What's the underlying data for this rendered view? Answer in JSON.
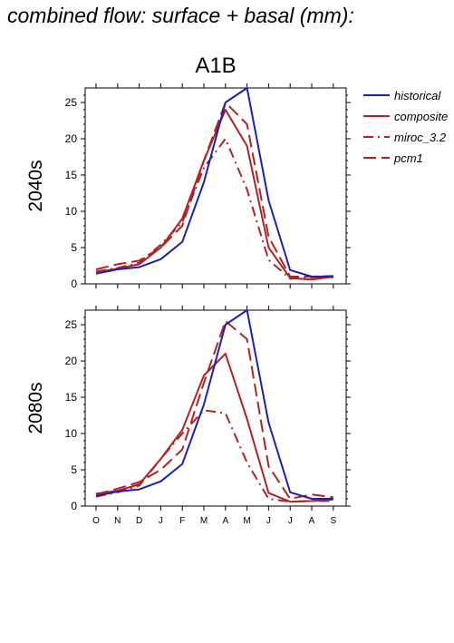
{
  "title": "combined flow: surface + basal (mm):",
  "colors": {
    "historical": "#1f1fb4",
    "composite": "#b22222",
    "miroc_3.2": "#b22222",
    "pcm1": "#b22222"
  },
  "chart_data": [
    {
      "type": "line",
      "scenario": "A1B",
      "ylabel": "2040s",
      "categories": [
        "O",
        "N",
        "D",
        "J",
        "F",
        "M",
        "A",
        "M",
        "J",
        "J",
        "A",
        "S"
      ],
      "ylim": [
        0,
        27
      ],
      "yticks": [
        0,
        5,
        10,
        15,
        20,
        25
      ],
      "legend": "top-right",
      "series": [
        {
          "name": "historical",
          "style": "solid",
          "values": [
            1.4,
            2.0,
            2.3,
            3.4,
            5.8,
            14.0,
            25.0,
            27.0,
            11.5,
            1.9,
            1.0,
            1.0
          ]
        },
        {
          "name": "composite",
          "style": "solid",
          "values": [
            1.6,
            2.1,
            2.7,
            5.0,
            9.0,
            17.0,
            24.0,
            19.0,
            5.0,
            0.8,
            0.6,
            1.0
          ]
        },
        {
          "name": "miroc_3.2",
          "style": "dashdot",
          "values": [
            1.7,
            2.2,
            2.9,
            5.4,
            8.5,
            16.0,
            20.0,
            13.0,
            3.3,
            0.7,
            0.9,
            0.9
          ]
        },
        {
          "name": "pcm1",
          "style": "dashed",
          "values": [
            2.0,
            2.7,
            3.2,
            5.0,
            8.0,
            17.0,
            25.0,
            22.0,
            6.5,
            1.0,
            1.0,
            1.1
          ]
        }
      ]
    },
    {
      "type": "line",
      "scenario": "",
      "ylabel": "2080s",
      "categories": [
        "O",
        "N",
        "D",
        "J",
        "F",
        "M",
        "A",
        "M",
        "J",
        "J",
        "A",
        "S"
      ],
      "ylim": [
        0,
        27
      ],
      "yticks": [
        0,
        5,
        10,
        15,
        20,
        25
      ],
      "series": [
        {
          "name": "historical",
          "style": "solid",
          "values": [
            1.4,
            2.0,
            2.3,
            3.4,
            5.8,
            14.0,
            25.0,
            27.0,
            11.5,
            1.9,
            1.0,
            1.0
          ]
        },
        {
          "name": "composite",
          "style": "solid",
          "values": [
            1.7,
            2.1,
            3.0,
            6.5,
            10.5,
            18.0,
            21.0,
            12.0,
            1.8,
            0.6,
            0.7,
            0.9
          ]
        },
        {
          "name": "miroc_3.2",
          "style": "dashdot",
          "values": [
            1.3,
            1.9,
            2.8,
            6.5,
            10.0,
            13.2,
            12.8,
            6.0,
            1.0,
            0.6,
            0.7,
            0.7
          ]
        },
        {
          "name": "pcm1",
          "style": "dashed",
          "values": [
            1.6,
            2.4,
            3.3,
            5.0,
            7.8,
            17.0,
            25.5,
            23.0,
            5.5,
            1.0,
            1.6,
            1.2
          ]
        }
      ]
    }
  ]
}
